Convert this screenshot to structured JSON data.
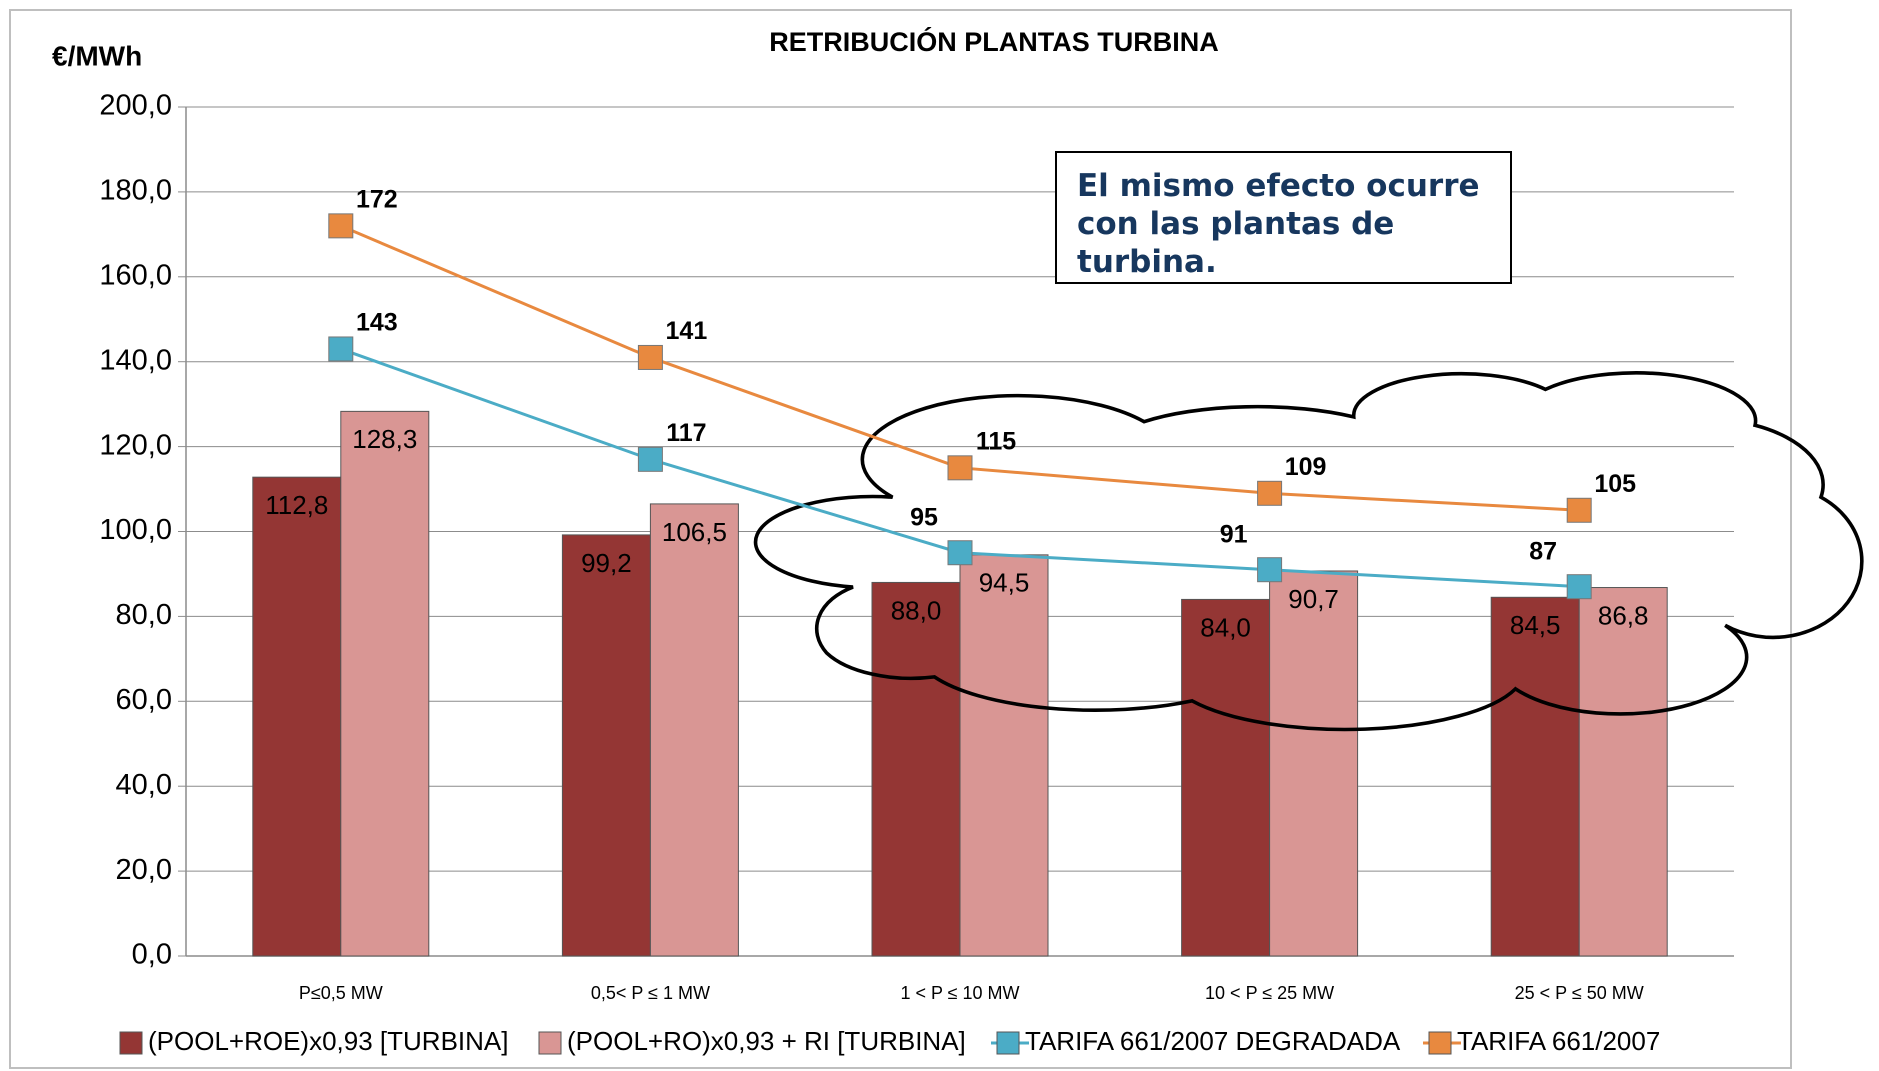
{
  "chart_data": {
    "type": "bar-line",
    "title": "RETRIBUCIÓN PLANTAS TURBINA",
    "y_label": "€/MWh",
    "annotation": "El mismo efecto ocurre con las plantas de turbina.",
    "categories": [
      "P≤0,5 MW",
      "0,5< P ≤ 1 MW",
      "1 < P ≤ 10 MW",
      "10 < P ≤ 25 MW",
      "25 < P ≤ 50 MW"
    ],
    "ylim": [
      0,
      200
    ],
    "yticks": [
      {
        "value": 0,
        "label": "0,0"
      },
      {
        "value": 20,
        "label": "20,0"
      },
      {
        "value": 40,
        "label": "40,0"
      },
      {
        "value": 60,
        "label": "60,0"
      },
      {
        "value": 80,
        "label": "80,0"
      },
      {
        "value": 100,
        "label": "100,0"
      },
      {
        "value": 120,
        "label": "120,0"
      },
      {
        "value": 140,
        "label": "140,0"
      },
      {
        "value": 160,
        "label": "160,0"
      },
      {
        "value": 180,
        "label": "180,0"
      },
      {
        "value": 200,
        "label": "200,0"
      }
    ],
    "grid": true,
    "series": [
      {
        "name": "(POOL+ROE)x0,93 [TURBINA]",
        "type": "bar",
        "color": "#943634",
        "values": [
          112.8,
          99.2,
          88.0,
          84.0,
          84.5
        ],
        "value_labels": [
          "112,8",
          "99,2",
          "88,0",
          "84,0",
          "84,5"
        ]
      },
      {
        "name": "(POOL+RO)x0,93 + RI [TURBINA]",
        "type": "bar",
        "color": "#d99694",
        "values": [
          128.3,
          106.5,
          94.5,
          90.7,
          86.8
        ],
        "value_labels": [
          "128,3",
          "106,5",
          "94,5",
          "90,7",
          "86,8"
        ]
      },
      {
        "name": "TARIFA 661/2007 DEGRADADA",
        "type": "line",
        "color": "#4bacc6",
        "values": [
          143,
          117,
          95,
          91,
          87
        ]
      },
      {
        "name": "TARIFA 661/2007",
        "type": "line",
        "color": "#e8893f",
        "values": [
          172,
          141,
          115,
          109,
          105
        ]
      }
    ]
  }
}
